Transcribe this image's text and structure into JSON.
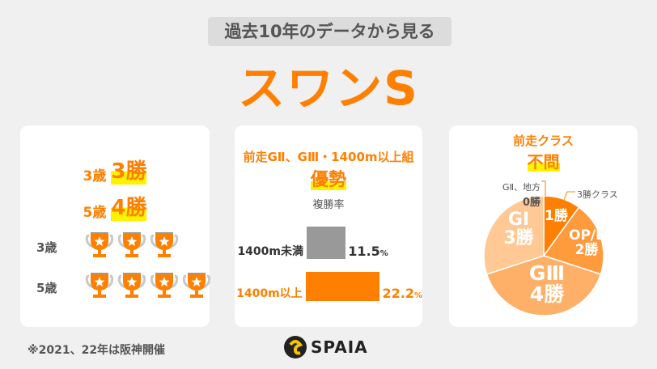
{
  "header": {
    "subtitle": "過去10年のデータから見る",
    "title": "スワンS"
  },
  "colors": {
    "accent": "#ff7f00",
    "highlight": "#fff200",
    "grey_bar": "#999999"
  },
  "age_card": {
    "lines": [
      {
        "age": "3歳",
        "wins": "3勝"
      },
      {
        "age": "5歳",
        "wins": "4勝"
      }
    ],
    "trophy_rows": [
      {
        "label": "3歳",
        "count": 3
      },
      {
        "label": "5歳",
        "count": 4
      }
    ],
    "icon": "trophy-icon"
  },
  "prev_race_card": {
    "heading": "前走GⅡ、GⅢ・1400m以上組",
    "verdict": "優勢",
    "metric": "複勝率",
    "bars": [
      {
        "label": "1400m未満",
        "value": 11.5,
        "value_text": "11.5",
        "unit": "%",
        "color": "#999999"
      },
      {
        "label": "1400m以上",
        "value": 22.2,
        "value_text": "22.2",
        "unit": "%",
        "color": "#ff7f00"
      }
    ]
  },
  "class_card": {
    "heading": "前走クラス",
    "verdict": "不問",
    "slices": [
      {
        "name": "3勝クラス",
        "wins": 1,
        "wins_text": "1勝",
        "color": "#ff7f00"
      },
      {
        "name": "OP/L",
        "wins": 2,
        "wins_text": "2勝",
        "color": "#ff9a3d"
      },
      {
        "name": "GⅢ",
        "wins": 4,
        "wins_text": "4勝",
        "color": "#ffb068"
      },
      {
        "name": "GⅠ",
        "wins": 3,
        "wins_text": "3勝",
        "color": "#ffc894"
      },
      {
        "name": "GⅡ、地方",
        "wins": 0,
        "wins_text": "0勝",
        "color": "#ffc894"
      }
    ]
  },
  "footnote": "※2021、22年は阪神開催",
  "logo": {
    "text": "SPAIA"
  }
}
